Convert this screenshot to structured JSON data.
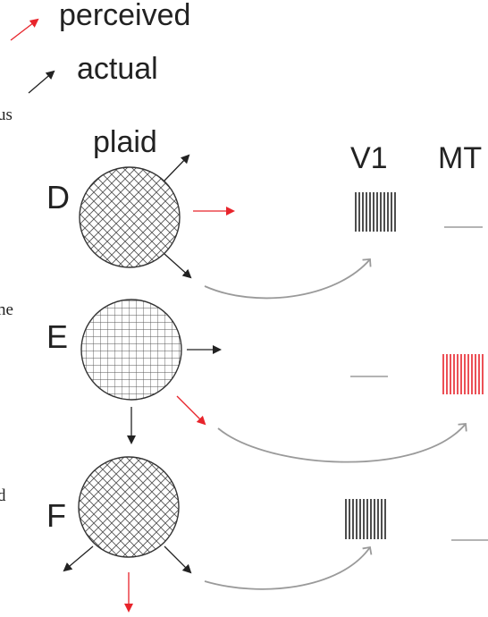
{
  "legend": {
    "perceived_label": "perceived",
    "actual_label": "actual"
  },
  "side_text": {
    "line1": "us",
    "line2": "ne",
    "line3": "d"
  },
  "labels": {
    "plaid": "plaid",
    "v1": "V1",
    "mt": "MT"
  },
  "rows": [
    {
      "letter": "D",
      "pattern": "diagonal-plaid",
      "v1_response": "bars",
      "mt_response": "dash"
    },
    {
      "letter": "E",
      "pattern": "grid-plaid",
      "v1_response": "dash",
      "mt_response": "bars"
    },
    {
      "letter": "F",
      "pattern": "diagonal-plaid",
      "v1_response": "bars",
      "mt_response": "dash"
    }
  ],
  "colors": {
    "perceived": "#e8242b",
    "actual": "#222222",
    "connector": "#9a9a9a",
    "bars_dark": "#222222",
    "bars_red": "#e8242b",
    "dash": "#888888"
  }
}
